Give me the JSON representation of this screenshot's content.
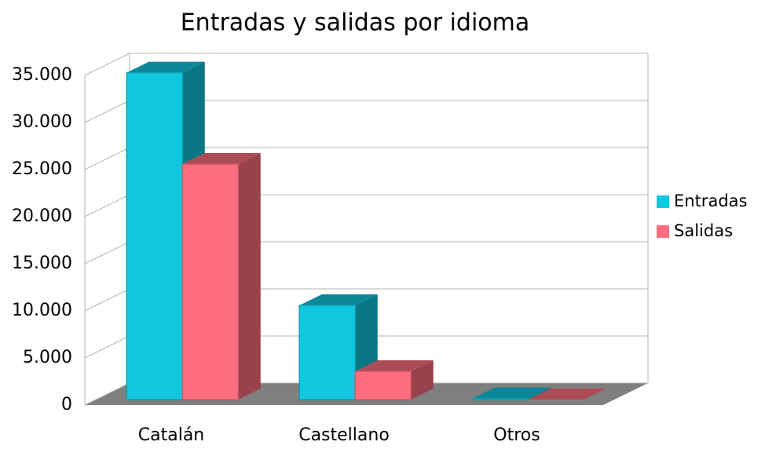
{
  "chart_data": {
    "type": "bar3d",
    "title": "Entradas y salidas por idioma",
    "categories": [
      "Catalán",
      "Castellano",
      "Otros"
    ],
    "series": [
      {
        "name": "Entradas",
        "color": "#11c7df",
        "values": [
          34700,
          10000,
          100
        ]
      },
      {
        "name": "Salidas",
        "color": "#ff6e7f",
        "values": [
          25000,
          3000,
          0
        ]
      }
    ],
    "ylim": [
      0,
      35000
    ],
    "yticks": [
      0,
      {
        "value": 5000,
        "label": "5.000"
      },
      {
        "value": 10000,
        "label": "10.000"
      },
      {
        "value": 15000,
        "label": "15.000"
      },
      {
        "value": 20000,
        "label": "20.000"
      },
      {
        "value": 25000,
        "label": "25.000"
      },
      {
        "value": 30000,
        "label": "30.000"
      },
      {
        "value": 35000,
        "label": "35.000"
      }
    ],
    "grid": true,
    "legend": "right"
  }
}
